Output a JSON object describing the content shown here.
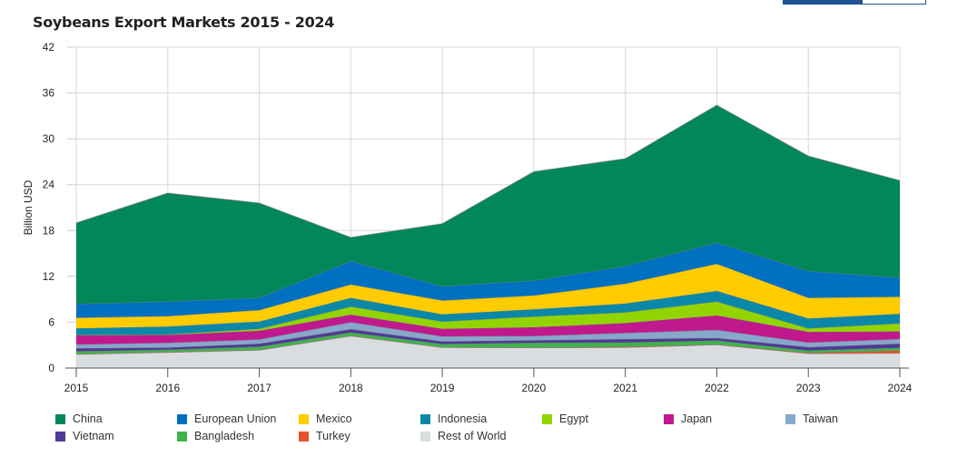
{
  "title": "Soybeans Export Markets 2015 - 2024",
  "chart_data": {
    "type": "area",
    "stacked": true,
    "title": "Soybeans Export Markets 2015 - 2024",
    "xlabel": "",
    "ylabel": "Billion USD",
    "ylim": [
      0,
      42
    ],
    "yticks": [
      "0",
      "6",
      "12",
      "18",
      "24",
      "30",
      "36",
      "42"
    ],
    "categories": [
      "2015",
      "2016",
      "2017",
      "2018",
      "2019",
      "2020",
      "2021",
      "2022",
      "2023",
      "2024"
    ],
    "grid": true,
    "legend_position": "bottom",
    "series": [
      {
        "name": "Rest of World",
        "color": "#d9dde0",
        "values": [
          1.8,
          2.05,
          2.35,
          4.2,
          2.7,
          2.65,
          2.7,
          3.05,
          1.9,
          1.95
        ]
      },
      {
        "name": "Turkey",
        "color": "#e6512a",
        "values": [
          0.05,
          0.05,
          0.05,
          0.05,
          0.05,
          0.05,
          0.1,
          0.05,
          0.1,
          0.35
        ]
      },
      {
        "name": "Bangladesh",
        "color": "#3db54a",
        "values": [
          0.35,
          0.3,
          0.4,
          0.4,
          0.4,
          0.6,
          0.55,
          0.5,
          0.3,
          0.35
        ]
      },
      {
        "name": "Vietnam",
        "color": "#4f3a96",
        "values": [
          0.4,
          0.3,
          0.4,
          0.45,
          0.35,
          0.35,
          0.45,
          0.35,
          0.45,
          0.55
        ]
      },
      {
        "name": "Taiwan",
        "color": "#87a7cb",
        "values": [
          0.5,
          0.6,
          0.55,
          0.9,
          0.65,
          0.55,
          0.8,
          1.05,
          0.6,
          0.6
        ]
      },
      {
        "name": "Japan",
        "color": "#c0198d",
        "values": [
          1.2,
          1.05,
          1.15,
          1.0,
          1.0,
          1.15,
          1.3,
          1.9,
          1.4,
          1.0
        ]
      },
      {
        "name": "Egypt",
        "color": "#92d400",
        "values": [
          0.05,
          0.05,
          0.25,
          1.05,
          0.95,
          1.4,
          1.4,
          1.8,
          0.45,
          1.05
        ]
      },
      {
        "name": "Indonesia",
        "color": "#0b88a8",
        "values": [
          0.85,
          1.05,
          0.95,
          1.15,
          0.95,
          0.95,
          1.15,
          1.4,
          1.3,
          1.25
        ]
      },
      {
        "name": "Mexico",
        "color": "#ffcc00",
        "values": [
          1.4,
          1.35,
          1.5,
          1.75,
          1.8,
          1.8,
          2.6,
          3.55,
          2.7,
          2.25
        ]
      },
      {
        "name": "European Union",
        "color": "#0070c0",
        "values": [
          1.8,
          1.9,
          1.6,
          3.05,
          1.85,
          1.95,
          2.3,
          2.75,
          3.5,
          2.45
        ]
      },
      {
        "name": "China",
        "color": "#02875a",
        "values": [
          10.6,
          14.2,
          12.4,
          3.1,
          8.2,
          14.25,
          14.05,
          18.0,
          15.05,
          12.75
        ]
      }
    ]
  },
  "legend": [
    "China",
    "European Union",
    "Mexico",
    "Indonesia",
    "Egypt",
    "Japan",
    "Taiwan",
    "Vietnam",
    "Bangladesh",
    "Turkey",
    "Rest of World"
  ]
}
